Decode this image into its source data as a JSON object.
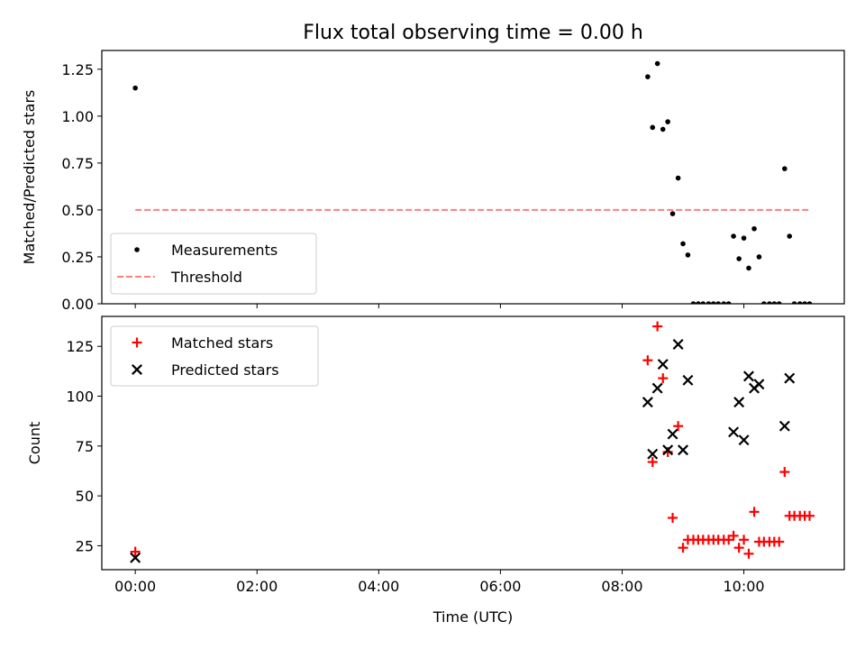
{
  "figure": {
    "title": "Flux total observing time = 0.00 h"
  },
  "chart_data": [
    {
      "type": "scatter",
      "title": "Flux total observing time = 0.00 h",
      "xlabel": "",
      "ylabel": "Matched/Predicted stars",
      "xlim": [
        -0.55,
        11.65
      ],
      "ylim": [
        0,
        1.35
      ],
      "x_ticks": [
        0,
        2,
        4,
        6,
        8,
        10
      ],
      "x_tick_labels": [
        "00:00",
        "02:00",
        "04:00",
        "06:00",
        "08:00",
        "10:00"
      ],
      "y_ticks": [
        0,
        0.25,
        0.5,
        0.75,
        1.0,
        1.25
      ],
      "y_tick_labels": [
        "0.00",
        "0.25",
        "0.50",
        "0.75",
        "1.00",
        "1.25"
      ],
      "legend_position": "lower-left",
      "series": [
        {
          "name": "Measurements",
          "marker": "dot",
          "color": "#000000",
          "x": [
            0.0,
            8.42,
            8.5,
            8.58,
            8.67,
            8.75,
            8.83,
            8.92,
            9.0,
            9.08,
            9.17,
            9.25,
            9.33,
            9.42,
            9.5,
            9.58,
            9.67,
            9.75,
            9.83,
            9.92,
            10.0,
            10.08,
            10.17,
            10.25,
            10.33,
            10.42,
            10.5,
            10.58,
            10.67,
            10.75,
            10.83,
            10.92,
            11.0,
            11.08
          ],
          "y": [
            1.15,
            1.21,
            0.94,
            1.28,
            0.93,
            0.97,
            0.48,
            0.67,
            0.32,
            0.26,
            0.0,
            0.0,
            0.0,
            0.0,
            0.0,
            0.0,
            0.0,
            0.0,
            0.36,
            0.24,
            0.35,
            0.19,
            0.4,
            0.25,
            0.0,
            0.0,
            0.0,
            0.0,
            0.72,
            0.36,
            0.0,
            0.0,
            0.0,
            0.0
          ]
        },
        {
          "name": "Threshold",
          "type": "line",
          "style": "dashed",
          "color": "#ff7f7f",
          "x": [
            0.0,
            11.08
          ],
          "y": [
            0.5,
            0.5
          ]
        }
      ]
    },
    {
      "type": "scatter",
      "title": "",
      "xlabel": "Time (UTC)",
      "ylabel": "Count",
      "xlim": [
        -0.55,
        11.65
      ],
      "ylim": [
        13,
        140
      ],
      "x_ticks": [
        0,
        2,
        4,
        6,
        8,
        10
      ],
      "x_tick_labels": [
        "00:00",
        "02:00",
        "04:00",
        "06:00",
        "08:00",
        "10:00"
      ],
      "y_ticks": [
        25,
        50,
        75,
        100,
        125
      ],
      "y_tick_labels": [
        "25",
        "50",
        "75",
        "100",
        "125"
      ],
      "legend_position": "upper-left",
      "series": [
        {
          "name": "Matched stars",
          "marker": "plus",
          "color": "#ff0000",
          "x": [
            0.0,
            8.42,
            8.5,
            8.58,
            8.67,
            8.75,
            8.83,
            8.92,
            9.0,
            9.08,
            9.17,
            9.25,
            9.33,
            9.42,
            9.5,
            9.58,
            9.67,
            9.75,
            9.83,
            9.92,
            10.0,
            10.08,
            10.17,
            10.25,
            10.33,
            10.42,
            10.5,
            10.58,
            10.67,
            10.75,
            10.83,
            10.92,
            11.0,
            11.08
          ],
          "y": [
            22,
            118,
            67,
            135,
            109,
            72,
            39,
            85,
            24,
            28,
            28,
            28,
            28,
            28,
            28,
            28,
            28,
            28,
            30,
            24,
            28,
            21,
            42,
            27,
            27,
            27,
            27,
            27,
            62,
            40,
            40,
            40,
            40,
            40
          ]
        },
        {
          "name": "Predicted stars",
          "marker": "x",
          "color": "#000000",
          "x": [
            0.0,
            8.42,
            8.5,
            8.58,
            8.67,
            8.75,
            8.83,
            8.92,
            9.0,
            9.08,
            9.83,
            9.92,
            10.0,
            10.08,
            10.17,
            10.25,
            10.67,
            10.75
          ],
          "y": [
            19,
            97,
            71,
            104,
            116,
            73,
            81,
            126,
            73,
            108,
            82,
            97,
            78,
            110,
            104,
            106,
            85,
            109
          ]
        }
      ]
    }
  ]
}
